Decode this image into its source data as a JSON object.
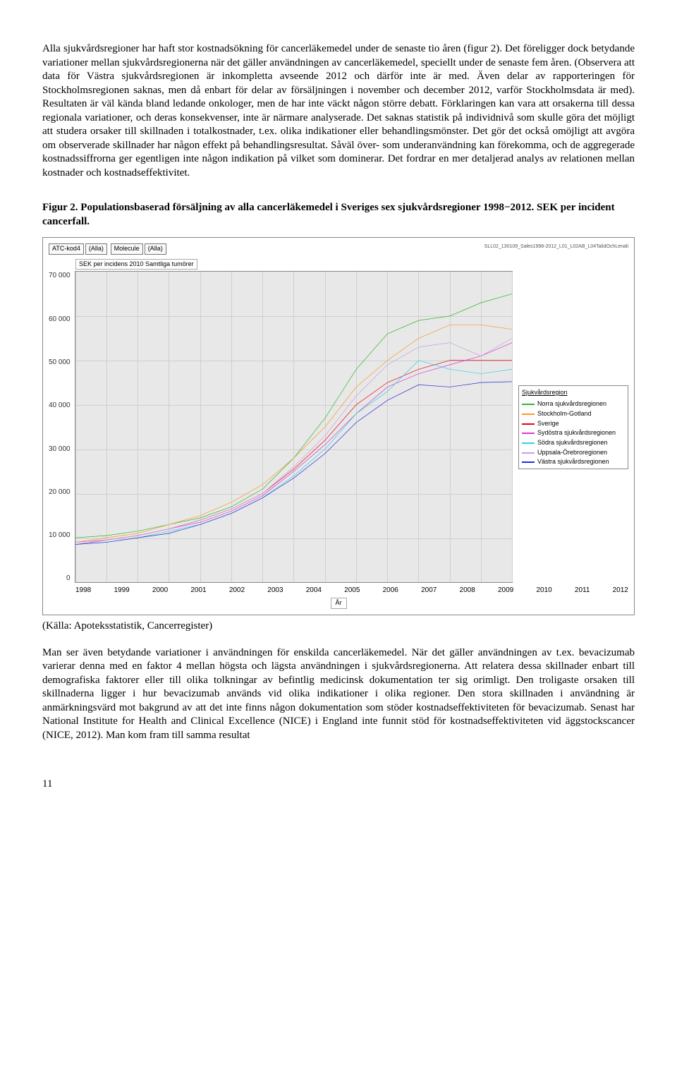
{
  "para1": "Alla sjukvårdsregioner har haft stor kostnadsökning för cancerläkemedel under de senaste tio åren (figur 2). Det föreligger dock betydande variationer mellan sjukvårdsregionerna när det gäller användningen av cancerläkemedel, speciellt under de senaste fem åren. (Observera att data för Västra sjukvårdsregionen är inkompletta avseende 2012 och därför inte är med. Även delar av rapporteringen för Stockholmsregionen saknas, men då enbart för delar av försäljningen i november och december 2012, varför Stockholmsdata är med). Resultaten är väl kända bland ledande onkologer, men de har inte väckt någon större debatt. Förklaringen kan vara att orsakerna till dessa regionala variationer, och deras konsekvenser, inte är närmare analyserade. Det saknas statistik på individnivå som skulle göra det möjligt att studera orsaker till skillnaden i totalkostnader, t.ex. olika indikationer eller behandlingsmönster. Det gör det också omöjligt att avgöra om observerade skillnader har någon effekt på behandlingsresultat. Såväl över- som underanvändning kan förekomma, och de aggregerade kostnadssiffrorna ger egentligen inte någon indikation på vilket som dominerar. Det fordrar en mer detaljerad analys av relationen mellan kostnader och kostnadseffektivitet.",
  "figTitle": "Figur 2. Populationsbaserad försäljning av alla cancerläkemedel i Sveriges sex sjukvårdsregioner 1998−2012. SEK per incident cancerfall.",
  "source": "(Källa: Apoteksstatistik, Cancerregister)",
  "para2": "Man ser även betydande variationer i användningen för enskilda cancerläkemedel. När det gäller användningen av t.ex. bevacizumab varierar denna med en faktor 4 mellan högsta och lägsta användningen i sjukvårdsregionerna. Att relatera dessa skillnader enbart till demografiska faktorer eller till olika tolkningar av befintlig medicinsk dokumentation ter sig orimligt. Den troligaste orsaken till skillnaderna ligger i hur bevacizumab används vid olika indikationer i olika regioner. Den stora skillnaden i användning är anmärkningsvärd mot bakgrund av att det inte finns någon dokumentation som stöder kostnadseffektiviteten för bevacizumab. Senast har National Institute for Health and Clinical Excellence (NICE) i England inte funnit stöd för kostnadseffektiviteten vid äggstockscancer (NICE, 2012). Man kom fram till samma resultat",
  "pageNum": "11",
  "chart": {
    "type": "line",
    "filters": {
      "f1": "ATC-kod4",
      "f1v": "(Alla)",
      "f2": "Molecule",
      "f2v": "(Alla)"
    },
    "right_id": "SLL02_130109_Sales1998-2012_L01_L02AB_L04TalidOchLenali",
    "sub_label": "SEK per incidens 2010 Samtliga tumörer",
    "x_label": "År",
    "background_color": "#e8e8e8",
    "grid_color": "#cfcfcf",
    "ylim": [
      0,
      70000
    ],
    "yticks": [
      "70 000",
      "60 000",
      "50 000",
      "40 000",
      "30 000",
      "20 000",
      "10 000",
      "0"
    ],
    "xvalues": [
      "1998",
      "1999",
      "2000",
      "2001",
      "2002",
      "2003",
      "2004",
      "2005",
      "2006",
      "2007",
      "2008",
      "2009",
      "2010",
      "2011",
      "2012"
    ],
    "legend_title": "Sjukvårdsregion",
    "series": [
      {
        "label": "Norra sjukvårdsregionen",
        "color": "#2fb72f",
        "values": [
          10000,
          10500,
          11500,
          13000,
          14500,
          17000,
          21000,
          28000,
          37000,
          48000,
          56000,
          59000,
          60000,
          63000,
          65000
        ]
      },
      {
        "label": "Stockholm-Gotland",
        "color": "#f39c2b",
        "values": [
          9000,
          10000,
          11000,
          13000,
          15000,
          18000,
          22000,
          28000,
          35000,
          44000,
          50000,
          55000,
          58000,
          58000,
          57000
        ]
      },
      {
        "label": "Sverige",
        "color": "#e30613",
        "values": [
          9000,
          9500,
          10500,
          12000,
          14000,
          16500,
          20000,
          25500,
          32000,
          40000,
          45000,
          48000,
          50000,
          50000,
          50000
        ]
      },
      {
        "label": "Sydöstra sjukvårdsregionen",
        "color": "#d53ccf",
        "values": [
          8500,
          9500,
          10500,
          12000,
          13500,
          16000,
          19500,
          25000,
          31000,
          38000,
          44000,
          47000,
          49000,
          51000,
          54000
        ]
      },
      {
        "label": "Södra sjukvårdsregionen",
        "color": "#2fd0e8",
        "values": [
          8500,
          9000,
          10000,
          11500,
          13000,
          15500,
          19000,
          24000,
          30000,
          38000,
          43000,
          50000,
          48000,
          47000,
          48000
        ]
      },
      {
        "label": "Uppsala-Örebroregionen",
        "color": "#c9a0dc",
        "values": [
          9000,
          9500,
          10500,
          12000,
          14000,
          16500,
          20000,
          26000,
          33000,
          42000,
          49000,
          53000,
          54000,
          51000,
          55000
        ]
      },
      {
        "label": "Västra sjukvårdsregionen",
        "color": "#2b2bd6",
        "values": [
          8500,
          9000,
          10000,
          11000,
          13000,
          15500,
          19000,
          23500,
          29000,
          36000,
          41000,
          44500,
          44000,
          45000,
          45200
        ]
      }
    ]
  }
}
